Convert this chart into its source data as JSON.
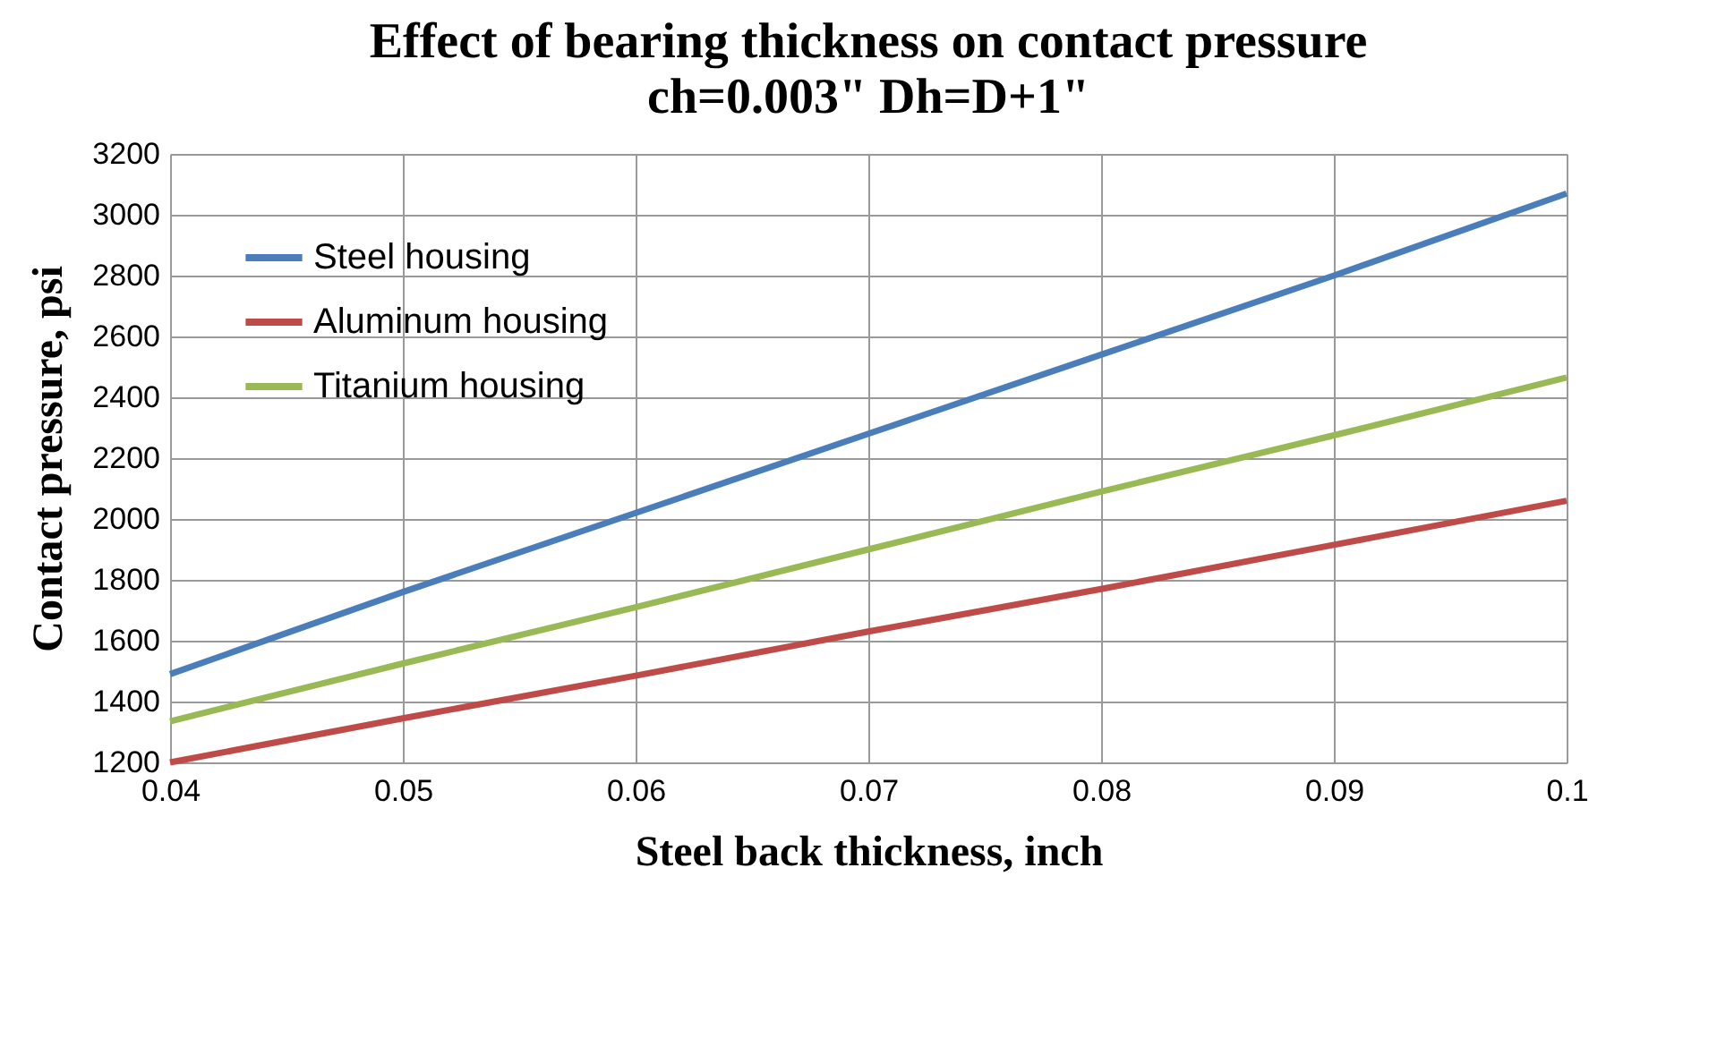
{
  "chart_data": {
    "type": "line",
    "title": "Effect of bearing thickness on contact pressure",
    "subtitle": "ch=0.003\"    Dh=D+1\"",
    "xlabel": "Steel back thickness, inch",
    "ylabel": "Contact  pressure, psi",
    "x": [
      0.04,
      0.05,
      0.06,
      0.07,
      0.08,
      0.09,
      0.1
    ],
    "series": [
      {
        "name": "Steel housing",
        "color": "#4a7ebb",
        "values": [
          1490,
          1760,
          2020,
          2280,
          2540,
          2800,
          3070
        ]
      },
      {
        "name": "Aluminum housing",
        "color": "#be4b48",
        "values": [
          1200,
          1345,
          1485,
          1630,
          1770,
          1915,
          2060
        ]
      },
      {
        "name": "Titanium housing",
        "color": "#98b954",
        "values": [
          1335,
          1525,
          1710,
          1900,
          2090,
          2275,
          2465
        ]
      }
    ],
    "xlim": [
      0.04,
      0.1
    ],
    "xticks": [
      0.04,
      0.05,
      0.06,
      0.07,
      0.08,
      0.09,
      0.1
    ],
    "ylim": [
      1200,
      3200
    ],
    "yticks": [
      1200,
      1400,
      1600,
      1800,
      2000,
      2200,
      2400,
      2600,
      2800,
      3000,
      3200
    ],
    "grid": true,
    "legend": "top left",
    "marker": "none",
    "line_style": "solid"
  }
}
